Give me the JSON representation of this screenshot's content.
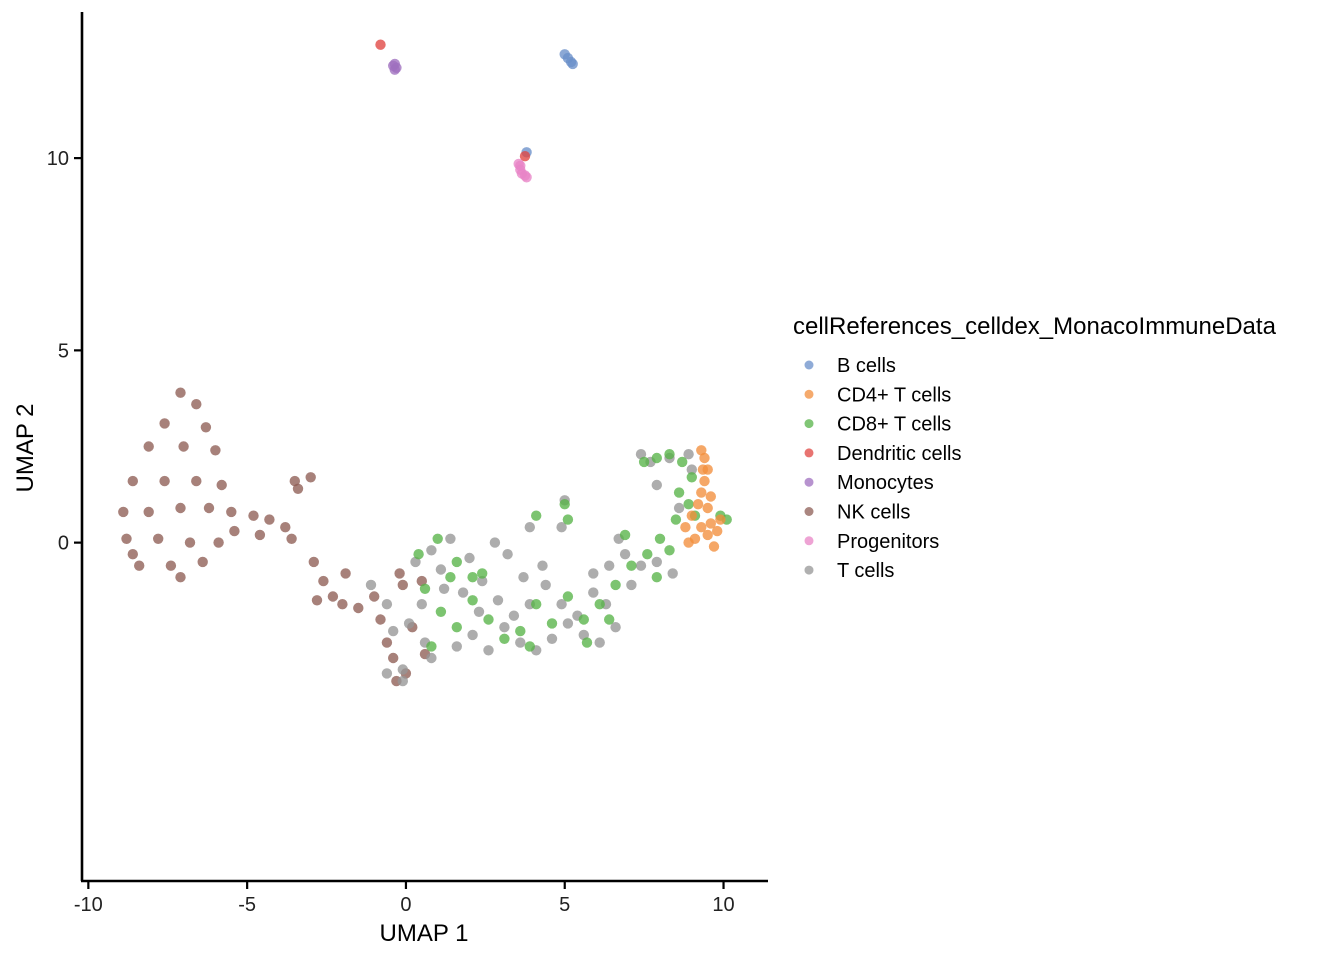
{
  "chart_data": {
    "type": "scatter",
    "title": "",
    "xlabel": "UMAP 1",
    "ylabel": "UMAP 2",
    "xlim": [
      -10.2,
      11.4
    ],
    "ylim": [
      -8.8,
      13.8
    ],
    "x_ticks": [
      {
        "value": -10,
        "label": "-10"
      },
      {
        "value": -5,
        "label": "-5"
      },
      {
        "value": 0,
        "label": "0"
      },
      {
        "value": 5,
        "label": "5"
      },
      {
        "value": 10,
        "label": "10"
      }
    ],
    "y_ticks": [
      {
        "value": 0,
        "label": "0"
      },
      {
        "value": 5,
        "label": "5"
      },
      {
        "value": 10,
        "label": "10"
      }
    ],
    "grid": false,
    "legend": {
      "title": "cellReferences_celldex_MonacoImmuneData",
      "position": "right"
    },
    "series": [
      {
        "name": "B cells",
        "color": "#6A8FC9",
        "points": [
          [
            5.0,
            12.7
          ],
          [
            5.1,
            12.6
          ],
          [
            5.2,
            12.5
          ],
          [
            5.25,
            12.45
          ],
          [
            3.8,
            10.15
          ]
        ]
      },
      {
        "name": "CD4+ T cells",
        "color": "#F28E3C",
        "points": [
          [
            9.3,
            2.4
          ],
          [
            9.4,
            2.2
          ],
          [
            9.5,
            1.9
          ],
          [
            9.4,
            1.6
          ],
          [
            9.3,
            1.3
          ],
          [
            9.2,
            1.0
          ],
          [
            9.5,
            0.9
          ],
          [
            9.6,
            0.5
          ],
          [
            9.3,
            0.4
          ],
          [
            9.5,
            0.2
          ],
          [
            9.8,
            0.3
          ],
          [
            9.1,
            0.1
          ],
          [
            8.8,
            0.4
          ],
          [
            9.0,
            0.7
          ],
          [
            9.9,
            0.6
          ],
          [
            9.7,
            -0.1
          ],
          [
            8.9,
            0.0
          ],
          [
            9.35,
            1.9
          ],
          [
            9.6,
            1.2
          ]
        ]
      },
      {
        "name": "CD8+ T cells",
        "color": "#57B348",
        "points": [
          [
            7.5,
            2.1
          ],
          [
            7.9,
            2.2
          ],
          [
            8.3,
            2.3
          ],
          [
            8.7,
            2.1
          ],
          [
            9.0,
            1.7
          ],
          [
            8.6,
            1.3
          ],
          [
            8.9,
            1.0
          ],
          [
            9.1,
            0.7
          ],
          [
            9.9,
            0.7
          ],
          [
            10.1,
            0.6
          ],
          [
            8.5,
            0.6
          ],
          [
            8.0,
            0.1
          ],
          [
            7.6,
            -0.3
          ],
          [
            7.1,
            -0.6
          ],
          [
            6.6,
            -1.1
          ],
          [
            6.1,
            -1.6
          ],
          [
            5.6,
            -2.0
          ],
          [
            5.1,
            -1.4
          ],
          [
            4.6,
            -2.1
          ],
          [
            4.1,
            -1.6
          ],
          [
            3.6,
            -2.3
          ],
          [
            3.1,
            -2.5
          ],
          [
            2.6,
            -2.0
          ],
          [
            2.1,
            -1.5
          ],
          [
            1.6,
            -2.2
          ],
          [
            1.1,
            -1.8
          ],
          [
            0.6,
            -1.2
          ],
          [
            0.4,
            -0.3
          ],
          [
            1.0,
            0.1
          ],
          [
            1.6,
            -0.5
          ],
          [
            2.1,
            -0.9
          ],
          [
            4.1,
            0.7
          ],
          [
            5.1,
            0.6
          ],
          [
            5.0,
            1.0
          ],
          [
            7.9,
            -0.9
          ],
          [
            8.3,
            -0.2
          ],
          [
            0.8,
            -2.7
          ],
          [
            3.9,
            -2.7
          ],
          [
            5.7,
            -2.6
          ],
          [
            6.4,
            -2.0
          ],
          [
            2.4,
            -0.8
          ],
          [
            1.4,
            -0.9
          ],
          [
            6.9,
            0.2
          ]
        ]
      },
      {
        "name": "Dendritic cells",
        "color": "#E04541",
        "points": [
          [
            -0.8,
            12.95
          ],
          [
            3.75,
            10.05
          ]
        ]
      },
      {
        "name": "Monocytes",
        "color": "#9F6FBF",
        "points": [
          [
            -0.4,
            12.4
          ],
          [
            -0.35,
            12.3
          ],
          [
            -0.3,
            12.35
          ],
          [
            -0.35,
            12.45
          ]
        ]
      },
      {
        "name": "NK cells",
        "color": "#8E5E55",
        "points": [
          [
            -7.1,
            3.9
          ],
          [
            -6.6,
            3.6
          ],
          [
            -7.6,
            3.1
          ],
          [
            -6.3,
            3.0
          ],
          [
            -8.1,
            2.5
          ],
          [
            -7.0,
            2.5
          ],
          [
            -6.0,
            2.4
          ],
          [
            -8.6,
            1.6
          ],
          [
            -7.6,
            1.6
          ],
          [
            -6.6,
            1.6
          ],
          [
            -5.8,
            1.5
          ],
          [
            -8.9,
            0.8
          ],
          [
            -8.1,
            0.8
          ],
          [
            -7.1,
            0.9
          ],
          [
            -6.2,
            0.9
          ],
          [
            -5.5,
            0.8
          ],
          [
            -8.8,
            0.1
          ],
          [
            -7.8,
            0.1
          ],
          [
            -6.8,
            0.0
          ],
          [
            -5.9,
            0.0
          ],
          [
            -8.4,
            -0.6
          ],
          [
            -7.4,
            -0.6
          ],
          [
            -6.4,
            -0.5
          ],
          [
            -7.1,
            -0.9
          ],
          [
            -8.6,
            -0.3
          ],
          [
            -5.4,
            0.3
          ],
          [
            -4.8,
            0.7
          ],
          [
            -4.3,
            0.6
          ],
          [
            -4.6,
            0.2
          ],
          [
            -3.5,
            1.6
          ],
          [
            -3.0,
            1.7
          ],
          [
            -3.4,
            1.4
          ],
          [
            -3.8,
            0.4
          ],
          [
            -3.6,
            0.1
          ],
          [
            -2.9,
            -0.5
          ],
          [
            -2.6,
            -1.0
          ],
          [
            -2.8,
            -1.5
          ],
          [
            -2.3,
            -1.4
          ],
          [
            -1.9,
            -0.8
          ],
          [
            -2.0,
            -1.6
          ],
          [
            -1.5,
            -1.7
          ],
          [
            -1.0,
            -1.4
          ],
          [
            -0.8,
            -2.0
          ],
          [
            -0.6,
            -2.6
          ],
          [
            -0.4,
            -3.0
          ],
          [
            -0.3,
            -3.6
          ],
          [
            0.0,
            -3.4
          ],
          [
            -0.1,
            -1.1
          ],
          [
            0.5,
            -1.0
          ],
          [
            0.2,
            -2.2
          ],
          [
            0.6,
            -2.9
          ],
          [
            -0.2,
            -0.8
          ]
        ]
      },
      {
        "name": "Progenitors",
        "color": "#E884C6",
        "points": [
          [
            3.55,
            9.85
          ],
          [
            3.6,
            9.7
          ],
          [
            3.65,
            9.6
          ],
          [
            3.75,
            9.55
          ],
          [
            3.8,
            9.5
          ],
          [
            3.6,
            9.8
          ]
        ]
      },
      {
        "name": "T cells",
        "color": "#969696",
        "points": [
          [
            0.3,
            -0.5
          ],
          [
            0.8,
            -0.2
          ],
          [
            1.4,
            0.1
          ],
          [
            2.0,
            -0.4
          ],
          [
            2.4,
            -1.0
          ],
          [
            2.9,
            -1.5
          ],
          [
            3.4,
            -1.9
          ],
          [
            3.9,
            -1.6
          ],
          [
            4.4,
            -1.1
          ],
          [
            4.9,
            -1.6
          ],
          [
            5.4,
            -1.9
          ],
          [
            5.9,
            -1.3
          ],
          [
            6.4,
            -0.6
          ],
          [
            6.7,
            0.1
          ],
          [
            6.9,
            -0.3
          ],
          [
            7.4,
            -0.6
          ],
          [
            7.9,
            -0.5
          ],
          [
            8.4,
            -0.8
          ],
          [
            7.9,
            1.5
          ],
          [
            7.7,
            2.1
          ],
          [
            7.4,
            2.3
          ],
          [
            8.3,
            2.2
          ],
          [
            8.9,
            2.3
          ],
          [
            5.0,
            1.1
          ],
          [
            4.9,
            0.4
          ],
          [
            3.9,
            0.4
          ],
          [
            3.2,
            -0.3
          ],
          [
            3.7,
            -0.9
          ],
          [
            0.5,
            -1.6
          ],
          [
            0.1,
            -2.1
          ],
          [
            0.6,
            -2.6
          ],
          [
            -0.1,
            -3.3
          ],
          [
            -0.6,
            -3.4
          ],
          [
            -0.1,
            -3.6
          ],
          [
            0.8,
            -3.0
          ],
          [
            1.6,
            -2.7
          ],
          [
            2.1,
            -2.4
          ],
          [
            2.6,
            -2.8
          ],
          [
            3.1,
            -2.2
          ],
          [
            3.6,
            -2.6
          ],
          [
            4.1,
            -2.8
          ],
          [
            4.6,
            -2.5
          ],
          [
            5.1,
            -2.1
          ],
          [
            5.6,
            -2.4
          ],
          [
            6.1,
            -2.6
          ],
          [
            6.6,
            -2.2
          ],
          [
            1.2,
            -1.2
          ],
          [
            1.8,
            -1.3
          ],
          [
            2.3,
            -1.8
          ],
          [
            4.3,
            -0.6
          ],
          [
            5.9,
            -0.8
          ],
          [
            6.3,
            -1.6
          ],
          [
            -1.1,
            -1.1
          ],
          [
            -0.6,
            -1.6
          ],
          [
            -0.4,
            -2.3
          ],
          [
            9.0,
            1.9
          ],
          [
            8.6,
            0.9
          ],
          [
            7.1,
            -1.1
          ],
          [
            2.8,
            0.0
          ],
          [
            1.1,
            -0.7
          ]
        ]
      }
    ]
  }
}
